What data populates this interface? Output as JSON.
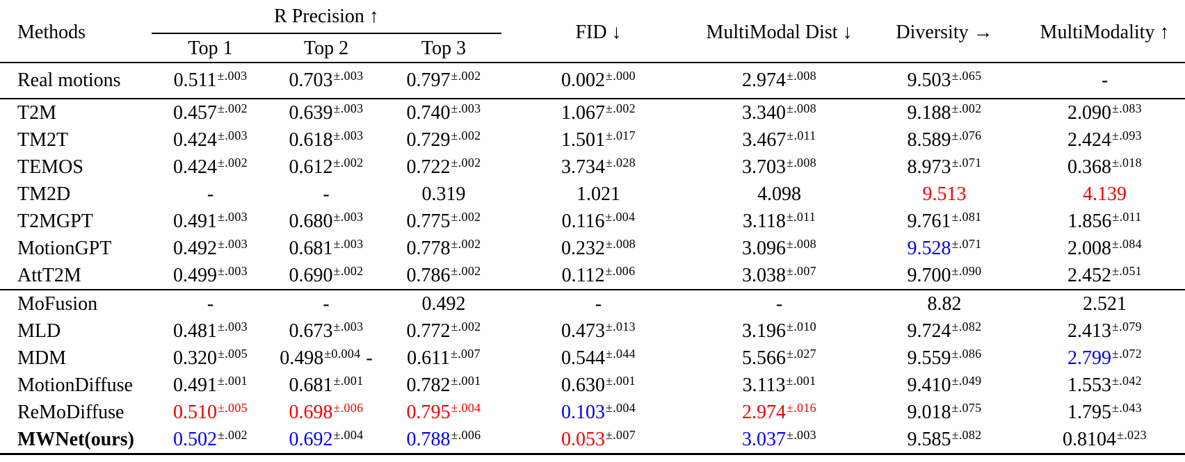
{
  "table": {
    "colors": {
      "red": "#f00000",
      "blue": "#0000ee",
      "text": "#000000"
    },
    "header": {
      "methods": "Methods",
      "r_precision_group": "R Precision ↑",
      "top1": "Top 1",
      "top2": "Top 2",
      "top3": "Top 3",
      "fid": "FID ↓",
      "mm_dist": "MultiModal Dist ↓",
      "diversity": "Diversity →",
      "multimodality": "MultiModality ↑"
    },
    "groups": [
      {
        "rows": [
          {
            "method": "Real motions",
            "cells": [
              {
                "v": "0.511",
                "s": "±.003"
              },
              {
                "v": "0.703",
                "s": "±.003"
              },
              {
                "v": "0.797",
                "s": "±.002"
              },
              {
                "v": "0.002",
                "s": "±.000"
              },
              {
                "v": "2.974",
                "s": "±.008"
              },
              {
                "v": "9.503",
                "s": "±.065"
              },
              {
                "v": "-"
              }
            ]
          }
        ]
      },
      {
        "rows": [
          {
            "method": "T2M",
            "cells": [
              {
                "v": "0.457",
                "s": "±.002"
              },
              {
                "v": "0.639",
                "s": "±.003"
              },
              {
                "v": "0.740",
                "s": "±.003"
              },
              {
                "v": "1.067",
                "s": "±.002"
              },
              {
                "v": "3.340",
                "s": "±.008"
              },
              {
                "v": "9.188",
                "s": "±.002"
              },
              {
                "v": "2.090",
                "s": "±.083"
              }
            ]
          },
          {
            "method": "TM2T",
            "cells": [
              {
                "v": "0.424",
                "s": "±.003"
              },
              {
                "v": "0.618",
                "s": "±.003"
              },
              {
                "v": "0.729",
                "s": "±.002"
              },
              {
                "v": "1.501",
                "s": "±.017"
              },
              {
                "v": "3.467",
                "s": "±.011"
              },
              {
                "v": "8.589",
                "s": "±.076"
              },
              {
                "v": "2.424",
                "s": "±.093"
              }
            ]
          },
          {
            "method": "TEMOS",
            "cells": [
              {
                "v": "0.424",
                "s": "±.002"
              },
              {
                "v": "0.612",
                "s": "±.002"
              },
              {
                "v": "0.722",
                "s": "±.002"
              },
              {
                "v": "3.734",
                "s": "±.028"
              },
              {
                "v": "3.703",
                "s": "±.008"
              },
              {
                "v": "8.973",
                "s": "±.071"
              },
              {
                "v": "0.368",
                "s": "±.018"
              }
            ]
          },
          {
            "method": "TM2D",
            "cells": [
              {
                "v": "-"
              },
              {
                "v": "-"
              },
              {
                "v": "0.319"
              },
              {
                "v": "1.021"
              },
              {
                "v": "4.098"
              },
              {
                "v": "9.513",
                "c": "red"
              },
              {
                "v": "4.139",
                "c": "red"
              }
            ]
          },
          {
            "method": "T2MGPT",
            "cells": [
              {
                "v": "0.491",
                "s": "±.003"
              },
              {
                "v": "0.680",
                "s": "±.003"
              },
              {
                "v": "0.775",
                "s": "±.002"
              },
              {
                "v": "0.116",
                "s": "±.004"
              },
              {
                "v": "3.118",
                "s": "±.011"
              },
              {
                "v": "9.761",
                "s": "±.081"
              },
              {
                "v": "1.856",
                "s": "±.011"
              }
            ]
          },
          {
            "method": "MotionGPT",
            "cells": [
              {
                "v": "0.492",
                "s": "±.003"
              },
              {
                "v": "0.681",
                "s": "±.003"
              },
              {
                "v": "0.778",
                "s": "±.002"
              },
              {
                "v": "0.232",
                "s": "±.008"
              },
              {
                "v": "3.096",
                "s": "±.008"
              },
              {
                "v": "9.528",
                "s": "±.071",
                "c": "blue"
              },
              {
                "v": "2.008",
                "s": "±.084"
              }
            ]
          },
          {
            "method": "AttT2M",
            "cells": [
              {
                "v": "0.499",
                "s": "±.003"
              },
              {
                "v": "0.690",
                "s": "±.002"
              },
              {
                "v": "0.786",
                "s": "±.002"
              },
              {
                "v": "0.112",
                "s": "±.006"
              },
              {
                "v": "3.038",
                "s": "±.007"
              },
              {
                "v": "9.700",
                "s": "±.090"
              },
              {
                "v": "2.452",
                "s": "±.051"
              }
            ]
          }
        ]
      },
      {
        "rows": [
          {
            "method": "MoFusion",
            "cells": [
              {
                "v": "-"
              },
              {
                "v": "-"
              },
              {
                "v": "0.492"
              },
              {
                "v": "-"
              },
              {
                "v": "-"
              },
              {
                "v": "8.82"
              },
              {
                "v": "2.521"
              }
            ]
          },
          {
            "method": "MLD",
            "cells": [
              {
                "v": "0.481",
                "s": "±.003"
              },
              {
                "v": "0.673",
                "s": "±.003"
              },
              {
                "v": "0.772",
                "s": "±.002"
              },
              {
                "v": "0.473",
                "s": "±.013"
              },
              {
                "v": "3.196",
                "s": "±.010"
              },
              {
                "v": "9.724",
                "s": "±.082"
              },
              {
                "v": "2.413",
                "s": "±.079"
              }
            ]
          },
          {
            "method": "MDM",
            "cells": [
              {
                "v": "0.320",
                "s": "±.005"
              },
              {
                "v": "0.498",
                "s": "±0.004",
                "suffix": "-"
              },
              {
                "v": "0.611",
                "s": "±.007"
              },
              {
                "v": "0.544",
                "s": "±.044"
              },
              {
                "v": "5.566",
                "s": "±.027"
              },
              {
                "v": "9.559",
                "s": "±.086"
              },
              {
                "v": "2.799",
                "s": "±.072",
                "c": "blue"
              }
            ]
          },
          {
            "method": "MotionDiffuse",
            "cells": [
              {
                "v": "0.491",
                "s": "±.001"
              },
              {
                "v": "0.681",
                "s": "±.001"
              },
              {
                "v": "0.782",
                "s": "±.001"
              },
              {
                "v": "0.630",
                "s": "±.001"
              },
              {
                "v": "3.113",
                "s": "±.001"
              },
              {
                "v": "9.410",
                "s": "±.049"
              },
              {
                "v": "1.553",
                "s": "±.042"
              }
            ]
          },
          {
            "method": "ReMoDiffuse",
            "cells": [
              {
                "v": "0.510",
                "s": "±.005",
                "c": "red",
                "sc": "red"
              },
              {
                "v": "0.698",
                "s": "±.006",
                "c": "red",
                "sc": "red"
              },
              {
                "v": "0.795",
                "s": "±.004",
                "c": "red",
                "sc": "red"
              },
              {
                "v": "0.103",
                "s": "±.004",
                "c": "blue"
              },
              {
                "v": "2.974",
                "s": "±.016",
                "c": "red",
                "sc": "red"
              },
              {
                "v": "9.018",
                "s": "±.075"
              },
              {
                "v": "1.795",
                "s": "±.043"
              }
            ]
          },
          {
            "method": "MWNet(ours)",
            "bold": true,
            "cells": [
              {
                "v": "0.502",
                "s": "±.002",
                "c": "blue"
              },
              {
                "v": "0.692",
                "s": "±.004",
                "c": "blue"
              },
              {
                "v": "0.788",
                "s": "±.006",
                "c": "blue"
              },
              {
                "v": "0.053",
                "s": "±.007",
                "c": "red"
              },
              {
                "v": "3.037",
                "s": "±.003",
                "c": "blue"
              },
              {
                "v": "9.585",
                "s": "±.082"
              },
              {
                "v": "0.8104",
                "s": "±.023"
              }
            ]
          }
        ]
      }
    ]
  }
}
